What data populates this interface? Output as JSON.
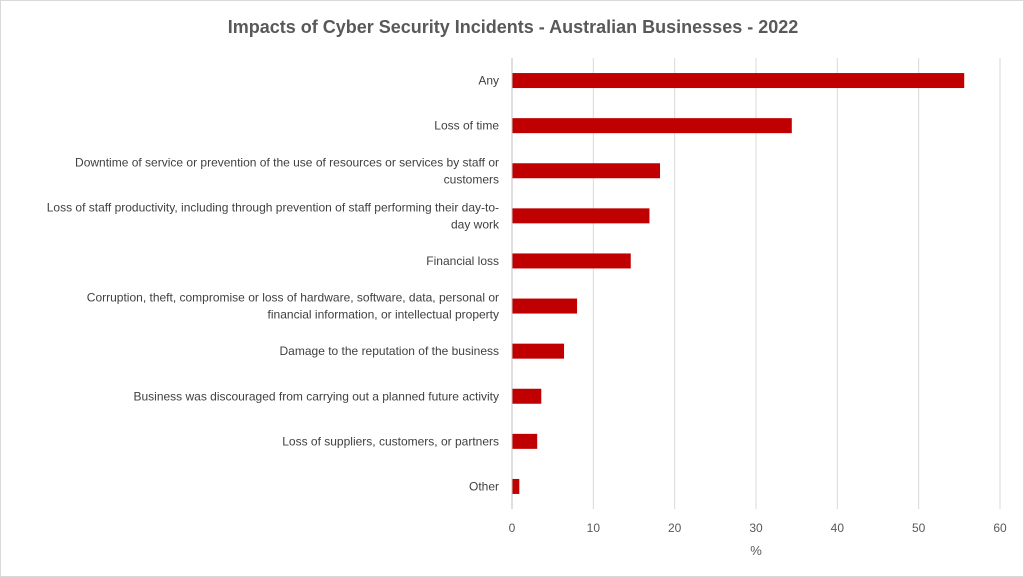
{
  "chart_data": {
    "type": "bar",
    "orientation": "horizontal",
    "title": "Impacts of Cyber Security Incidents - Australian Businesses - 2022",
    "xlabel": "%",
    "ylabel": "",
    "categories": [
      [
        "Any"
      ],
      [
        "Loss of time"
      ],
      [
        "Downtime of service or prevention of the use of resources or services by staff or",
        "customers"
      ],
      [
        "Loss of staff productivity, including through prevention of staff performing their day-to-",
        "day work"
      ],
      [
        "Financial loss"
      ],
      [
        "Corruption, theft, compromise or loss of hardware, software, data, personal or",
        "financial information, or intellectual property"
      ],
      [
        "Damage to the reputation of the business"
      ],
      [
        "Business was discouraged from carrying out a planned future activity"
      ],
      [
        "Loss of suppliers, customers, or partners"
      ],
      [
        "Other"
      ]
    ],
    "values": [
      55.6,
      34.4,
      18.2,
      16.9,
      14.6,
      8.0,
      6.4,
      3.6,
      3.1,
      0.9
    ],
    "xlim": [
      0,
      60
    ],
    "xticks": [
      0,
      10,
      20,
      30,
      40,
      50,
      60
    ],
    "grid": true,
    "legend": "none",
    "bar_color": "#c00000",
    "grid_color": "#d9d9d9",
    "axis_color": "#bfbfbf"
  }
}
